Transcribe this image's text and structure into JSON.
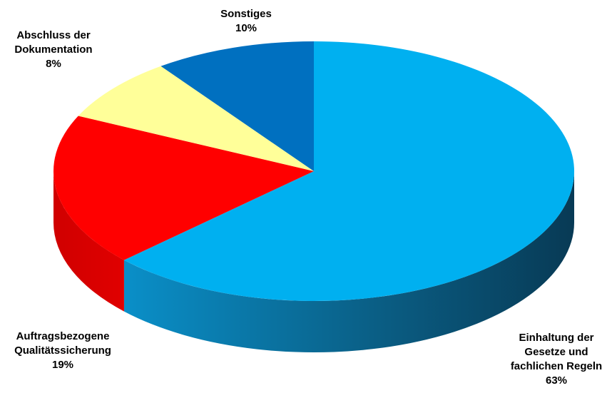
{
  "chart_data": {
    "type": "pie",
    "title": "",
    "slices": [
      {
        "label_lines": [
          "Einhaltung der",
          "Gesetze und",
          "fachlichen Regeln"
        ],
        "pct_label": "63%",
        "value": 63,
        "color": "#00B0F0",
        "side_color": "#0A6F97"
      },
      {
        "label_lines": [
          "Auftragsbezogene",
          "Qualitätssicherung"
        ],
        "pct_label": "19%",
        "value": 19,
        "color": "#FF0000",
        "side_color": "#C80000"
      },
      {
        "label_lines": [
          "Abschluss der",
          "Dokumentation"
        ],
        "pct_label": "8%",
        "value": 8,
        "color": "#FFFF99",
        "side_color": "#CFCF72"
      },
      {
        "label_lines": [
          "Sonstiges"
        ],
        "pct_label": "10%",
        "value": 10,
        "color": "#0070C0",
        "side_color": "#004A80"
      }
    ]
  }
}
